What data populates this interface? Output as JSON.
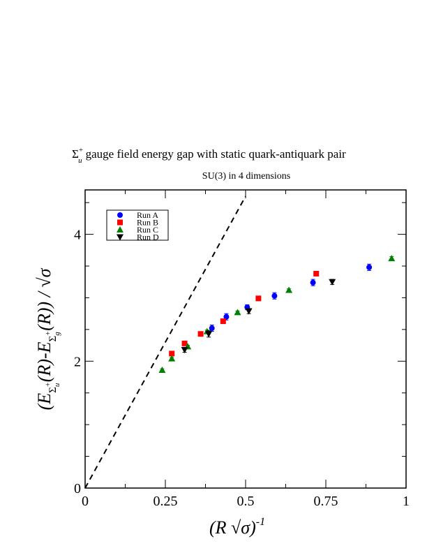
{
  "chart_data": {
    "type": "scatter",
    "title_symbol": "Σ",
    "title_sup": "+",
    "title_sub": "u",
    "title": "gauge field energy gap with static quark-antiquark pair",
    "subtitle": "SU(3) in 4 dimensions",
    "xlabel": "(R √σ)",
    "xlabel_sup": "-1",
    "ylabel": "(E_Σu+(R)-E_Σg+(R)) / √σ",
    "xlim": [
      0,
      1
    ],
    "ylim": [
      0,
      4.7
    ],
    "x_ticks": [
      0,
      0.25,
      0.5,
      0.75,
      1
    ],
    "x_tick_labels": [
      "0",
      "0.25",
      "0.5",
      "0.75",
      "1"
    ],
    "y_ticks": [
      0,
      2,
      4
    ],
    "y_tick_labels": [
      "0",
      "2",
      "4"
    ],
    "legend_position": "top-left",
    "reference_line": {
      "style": "dashed",
      "x": [
        0,
        0.5
      ],
      "y": [
        0,
        4.6
      ]
    },
    "series": [
      {
        "name": "Run A",
        "color": "#0000ff",
        "marker": "circle",
        "points": [
          {
            "x": 0.395,
            "y": 2.52,
            "err": 0.05
          },
          {
            "x": 0.44,
            "y": 2.7,
            "err": 0.05
          },
          {
            "x": 0.505,
            "y": 2.85,
            "err": 0.04
          },
          {
            "x": 0.59,
            "y": 3.03,
            "err": 0.05
          },
          {
            "x": 0.71,
            "y": 3.24,
            "err": 0.05
          },
          {
            "x": 0.885,
            "y": 3.48,
            "err": 0.05
          }
        ]
      },
      {
        "name": "Run B",
        "color": "#ff0000",
        "marker": "square",
        "points": [
          {
            "x": 0.27,
            "y": 2.12,
            "err": 0.02
          },
          {
            "x": 0.31,
            "y": 2.28,
            "err": 0.02
          },
          {
            "x": 0.36,
            "y": 2.43,
            "err": 0.03
          },
          {
            "x": 0.43,
            "y": 2.63,
            "err": 0.03
          },
          {
            "x": 0.54,
            "y": 2.99,
            "err": 0.03
          },
          {
            "x": 0.72,
            "y": 3.38,
            "err": 0.03
          }
        ]
      },
      {
        "name": "Run C",
        "color": "#008000",
        "marker": "triangle-up",
        "points": [
          {
            "x": 0.24,
            "y": 1.86,
            "err": 0.02
          },
          {
            "x": 0.27,
            "y": 2.04,
            "err": 0.02
          },
          {
            "x": 0.32,
            "y": 2.23,
            "err": 0.02
          },
          {
            "x": 0.38,
            "y": 2.47,
            "err": 0.02
          },
          {
            "x": 0.475,
            "y": 2.77,
            "err": 0.02
          },
          {
            "x": 0.635,
            "y": 3.12,
            "err": 0.02
          },
          {
            "x": 0.955,
            "y": 3.62,
            "err": 0.03
          }
        ]
      },
      {
        "name": "Run D",
        "color": "#000000",
        "marker": "triangle-down",
        "points": [
          {
            "x": 0.31,
            "y": 2.18,
            "err": 0.04
          },
          {
            "x": 0.385,
            "y": 2.43,
            "err": 0.05
          },
          {
            "x": 0.51,
            "y": 2.79,
            "err": 0.04
          },
          {
            "x": 0.77,
            "y": 3.25,
            "err": 0.04
          }
        ]
      }
    ]
  }
}
